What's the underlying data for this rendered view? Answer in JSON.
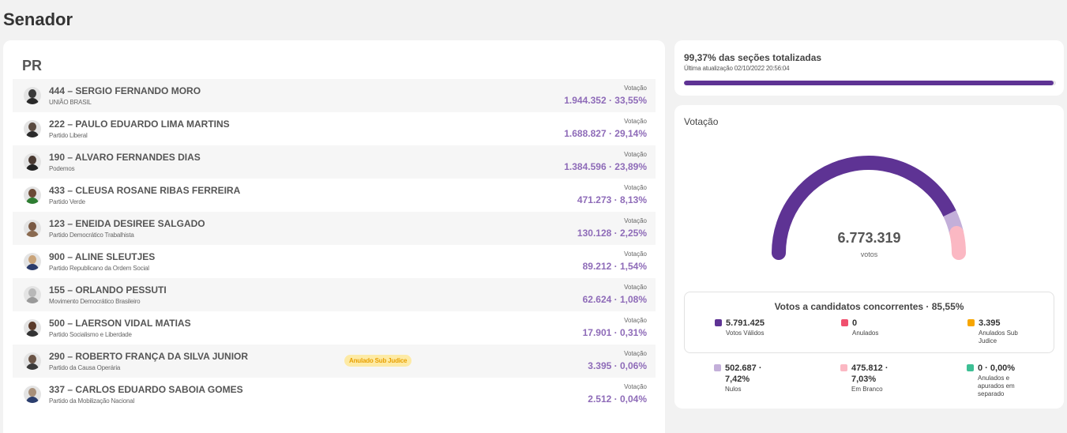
{
  "page": {
    "title": "Senador"
  },
  "state": "PR",
  "vote_label": "Votação",
  "candidates": [
    {
      "name": "444 – SERGIO FERNANDO MORO",
      "party": "UNIÃO BRASIL",
      "votes": "1.944.352 · 33,55%",
      "badge": ""
    },
    {
      "name": "222 – PAULO EDUARDO LIMA MARTINS",
      "party": "Partido Liberal",
      "votes": "1.688.827 · 29,14%",
      "badge": ""
    },
    {
      "name": "190 – ALVARO FERNANDES DIAS",
      "party": "Podemos",
      "votes": "1.384.596 · 23,89%",
      "badge": ""
    },
    {
      "name": "433 – CLEUSA ROSANE RIBAS FERREIRA",
      "party": "Partido Verde",
      "votes": "471.273 · 8,13%",
      "badge": ""
    },
    {
      "name": "123 – ENEIDA DESIREE SALGADO",
      "party": "Partido Democrático Trabalhista",
      "votes": "130.128 · 2,25%",
      "badge": ""
    },
    {
      "name": "900 – ALINE SLEUTJES",
      "party": "Partido Republicano da Ordem Social",
      "votes": "89.212 · 1,54%",
      "badge": ""
    },
    {
      "name": "155 – ORLANDO PESSUTI",
      "party": "Movimento Democrático Brasileiro",
      "votes": "62.624 · 1,08%",
      "badge": ""
    },
    {
      "name": "500 – LAERSON VIDAL MATIAS",
      "party": "Partido Socialismo e Liberdade",
      "votes": "17.901 · 0,31%",
      "badge": ""
    },
    {
      "name": "290 – ROBERTO FRANÇA DA SILVA JUNIOR",
      "party": "Partido da Causa Operária",
      "votes": "3.395 · 0,06%",
      "badge": "Anulado Sub Judice"
    },
    {
      "name": "337 – CARLOS EDUARDO SABOIA GOMES",
      "party": "Partido da Mobilização Nacional",
      "votes": "2.512 · 0,04%",
      "badge": ""
    }
  ],
  "progress": {
    "title": "99,37% das seções totalizadas",
    "updated": "Última atualização 02/10/2022 20:56:04",
    "percent": 99.37
  },
  "votacao": {
    "title": "Votação",
    "total": "6.773.319",
    "total_unit": "votos",
    "gauge_fractions": {
      "valid": 0.8555,
      "null": 0.0742,
      "blank": 0.0703
    },
    "concorrentes_title": "Votos a candidatos concorrentes · 85,55%",
    "stats": [
      {
        "value": "5.791.425",
        "label": "Votos Válidos",
        "color": "#5e3394"
      },
      {
        "value": "0",
        "label": "Anulados",
        "color": "#f0506e"
      },
      {
        "value": "3.395",
        "label": "Anulados Sub Judice",
        "color": "#f7a600"
      },
      {
        "value": "502.687 · 7,42%",
        "label": "Nulos",
        "color": "#c3afd9"
      },
      {
        "value": "475.812 · 7,03%",
        "label": "Em Branco",
        "color": "#fbb8c3"
      },
      {
        "value": "0 · 0,00%",
        "label": "Anulados e apurados em separado",
        "color": "#3dbf94"
      }
    ]
  },
  "colors": {
    "accent": "#5e3394",
    "vote_text": "#8e6bb8",
    "badge_bg": "#fdeaa5",
    "badge_text": "#e8a000"
  }
}
